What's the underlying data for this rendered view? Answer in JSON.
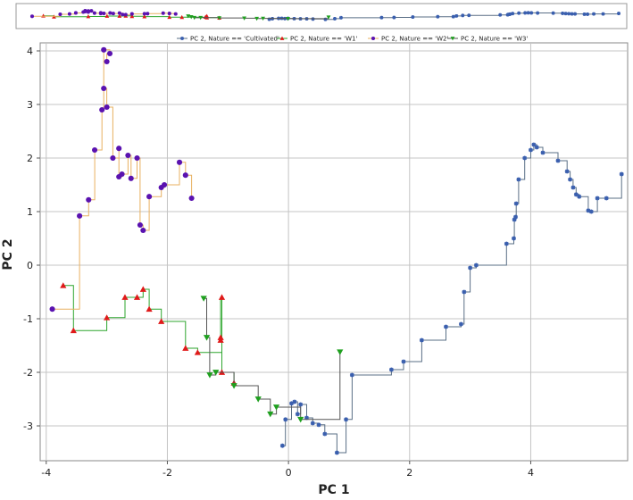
{
  "chart_data": {
    "type": "line",
    "xlabel": "PC 1",
    "ylabel": "PC 2",
    "xlim": [
      -4.1,
      5.6
    ],
    "ylim": [
      -3.65,
      4.15
    ],
    "x_ticks": [
      -4,
      -2,
      0,
      2,
      4
    ],
    "y_ticks": [
      -3,
      -2,
      -1,
      0,
      1,
      2,
      3,
      4
    ],
    "grid": true,
    "legend_position": "top",
    "step": true,
    "overview_strip": true,
    "colors": {
      "cultivated": "#3a5fae",
      "cultivated_line": "#5a6f86",
      "w1": "#e01a1a",
      "w1_line": "#2ea62e",
      "w2": "#5a12b0",
      "w2_line": "#e8b060",
      "w3": "#1fa01f",
      "w3_line": "#555555"
    },
    "series": [
      {
        "name": "PC 2, Nature == 'Cultivated'",
        "marker": "star",
        "color_key": "cultivated",
        "line_key": "cultivated_line",
        "points": [
          [
            -0.1,
            -3.37
          ],
          [
            -0.05,
            -2.88
          ],
          [
            0.05,
            -2.58
          ],
          [
            0.1,
            -2.55
          ],
          [
            0.15,
            -2.78
          ],
          [
            0.2,
            -2.6
          ],
          [
            0.3,
            -2.85
          ],
          [
            0.4,
            -2.95
          ],
          [
            0.5,
            -2.98
          ],
          [
            0.6,
            -3.15
          ],
          [
            0.8,
            -3.5
          ],
          [
            0.95,
            -2.88
          ],
          [
            1.05,
            -2.05
          ],
          [
            1.7,
            -1.95
          ],
          [
            1.9,
            -1.8
          ],
          [
            2.2,
            -1.4
          ],
          [
            2.6,
            -1.15
          ],
          [
            2.85,
            -1.1
          ],
          [
            2.9,
            -0.5
          ],
          [
            3.0,
            -0.05
          ],
          [
            3.1,
            0.0
          ],
          [
            3.6,
            0.4
          ],
          [
            3.72,
            0.5
          ],
          [
            3.73,
            0.85
          ],
          [
            3.75,
            0.9
          ],
          [
            3.76,
            1.15
          ],
          [
            3.8,
            1.6
          ],
          [
            3.9,
            2.0
          ],
          [
            4.0,
            2.15
          ],
          [
            4.05,
            2.25
          ],
          [
            4.1,
            2.2
          ],
          [
            4.2,
            2.1
          ],
          [
            4.45,
            1.95
          ],
          [
            4.6,
            1.75
          ],
          [
            4.65,
            1.6
          ],
          [
            4.7,
            1.45
          ],
          [
            4.75,
            1.32
          ],
          [
            4.8,
            1.28
          ],
          [
            4.95,
            1.02
          ],
          [
            5.0,
            1.0
          ],
          [
            5.1,
            1.25
          ],
          [
            5.25,
            1.25
          ],
          [
            5.5,
            1.7
          ]
        ]
      },
      {
        "name": "PC 2, Nature == 'W1'",
        "marker": "triangle-up",
        "color_key": "w1",
        "line_key": "w1_line",
        "points": [
          [
            -3.72,
            -0.38
          ],
          [
            -3.55,
            -1.22
          ],
          [
            -3.0,
            -0.98
          ],
          [
            -2.7,
            -0.6
          ],
          [
            -2.5,
            -0.6
          ],
          [
            -2.4,
            -0.45
          ],
          [
            -2.3,
            -0.82
          ],
          [
            -2.1,
            -1.05
          ],
          [
            -1.7,
            -1.55
          ],
          [
            -1.5,
            -1.63
          ],
          [
            -1.1,
            -0.6
          ],
          [
            -1.12,
            -1.35
          ],
          [
            -1.12,
            -1.4
          ],
          [
            -1.1,
            -2.0
          ],
          [
            -0.9,
            -2.2
          ]
        ]
      },
      {
        "name": "PC 2, Nature == 'W2'",
        "marker": "circle",
        "color_key": "w2",
        "line_key": "w2_line",
        "points": [
          [
            -3.9,
            -0.82
          ],
          [
            -3.45,
            0.92
          ],
          [
            -3.3,
            1.22
          ],
          [
            -3.2,
            2.15
          ],
          [
            -3.08,
            2.9
          ],
          [
            -3.05,
            4.02
          ],
          [
            -2.95,
            3.95
          ],
          [
            -3.0,
            3.8
          ],
          [
            -3.05,
            3.3
          ],
          [
            -3.0,
            2.95
          ],
          [
            -2.9,
            2.0
          ],
          [
            -2.8,
            2.18
          ],
          [
            -2.8,
            1.65
          ],
          [
            -2.75,
            1.7
          ],
          [
            -2.65,
            2.05
          ],
          [
            -2.6,
            1.62
          ],
          [
            -2.5,
            2.0
          ],
          [
            -2.45,
            0.75
          ],
          [
            -2.4,
            0.65
          ],
          [
            -2.3,
            1.28
          ],
          [
            -2.1,
            1.45
          ],
          [
            -2.05,
            1.5
          ],
          [
            -1.8,
            1.92
          ],
          [
            -1.7,
            1.68
          ],
          [
            -1.6,
            1.25
          ]
        ]
      },
      {
        "name": "PC 2, Nature == 'W3'",
        "marker": "triangle-down",
        "color_key": "w3",
        "line_key": "w3_line",
        "points": [
          [
            -1.4,
            -0.62
          ],
          [
            -1.35,
            -1.35
          ],
          [
            -1.3,
            -2.05
          ],
          [
            -1.2,
            -2.0
          ],
          [
            -0.9,
            -2.25
          ],
          [
            -0.5,
            -2.5
          ],
          [
            -0.3,
            -2.78
          ],
          [
            -0.2,
            -2.65
          ],
          [
            0.2,
            -2.88
          ],
          [
            0.85,
            -1.62
          ]
        ]
      }
    ]
  }
}
